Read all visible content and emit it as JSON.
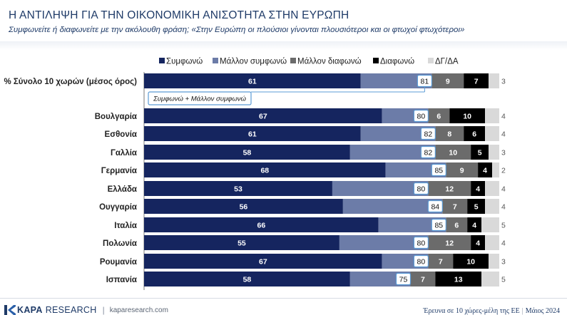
{
  "header": {
    "title": "Η ΑΝΤΙΛΗΨΗ ΓΙΑ ΤΗΝ ΟΙΚΟΝΟΜΙΚΗ ΑΝΙΣΟΤΗΤΑ ΣΤΗΝ ΕΥΡΩΠΗ",
    "subtitle": "Συμφωνείτε ή διαφωνείτε με την ακόλουθη φράση; «Στην Ευρώπη οι πλούσιοι γίνονται πλουσιότεροι και οι φτωχοί φτωχότεροι»"
  },
  "footer": {
    "brand_bold": "KAPA",
    "brand_light": "RESEARCH",
    "separator": "|",
    "url": "kaparesearch.com",
    "note": "Έρευνα σε 10 χώρες-μέλη της ΕΕ",
    "note_sep": "|",
    "date": "Μάιος 2024"
  },
  "chart_data": {
    "type": "bar",
    "orientation": "horizontal",
    "stacked": true,
    "xlim": [
      0,
      100
    ],
    "legend_position": "top",
    "categories": [
      "% Σύνολο 10 χωρών (μέσος όρος)",
      "Βουλγαρία",
      "Εσθονία",
      "Γαλλία",
      "Γερμανία",
      "Ελλάδα",
      "Ουγγαρία",
      "Ιταλία",
      "Πολωνία",
      "Ρουμανία",
      "Ισπανία"
    ],
    "series": [
      {
        "name": "Συμφωνώ",
        "color": "#15255f",
        "values": [
          61,
          67,
          61,
          58,
          68,
          53,
          56,
          66,
          55,
          67,
          58
        ]
      },
      {
        "name": "Μάλλον συμφωνώ",
        "color": "#6c7ca8",
        "values": [
          20,
          13,
          21,
          24,
          17,
          27,
          28,
          19,
          25,
          13,
          17
        ]
      },
      {
        "name": "Μάλλον διαφωνώ",
        "color": "#6b6b6b",
        "values": [
          9,
          6,
          8,
          10,
          9,
          12,
          7,
          6,
          12,
          7,
          7
        ]
      },
      {
        "name": "Διαφωνώ",
        "color": "#000000",
        "values": [
          7,
          10,
          6,
          5,
          4,
          4,
          5,
          4,
          4,
          10,
          13
        ]
      },
      {
        "name": "ΔΓ/ΔΑ",
        "color": "#d9d9d9",
        "values": [
          3,
          4,
          4,
          3,
          2,
          4,
          4,
          5,
          4,
          3,
          5
        ]
      }
    ],
    "totals": {
      "label": "Συμφωνώ + Μάλλον συμφωνώ",
      "values": [
        81,
        80,
        82,
        82,
        85,
        80,
        84,
        85,
        80,
        80,
        75
      ]
    }
  }
}
